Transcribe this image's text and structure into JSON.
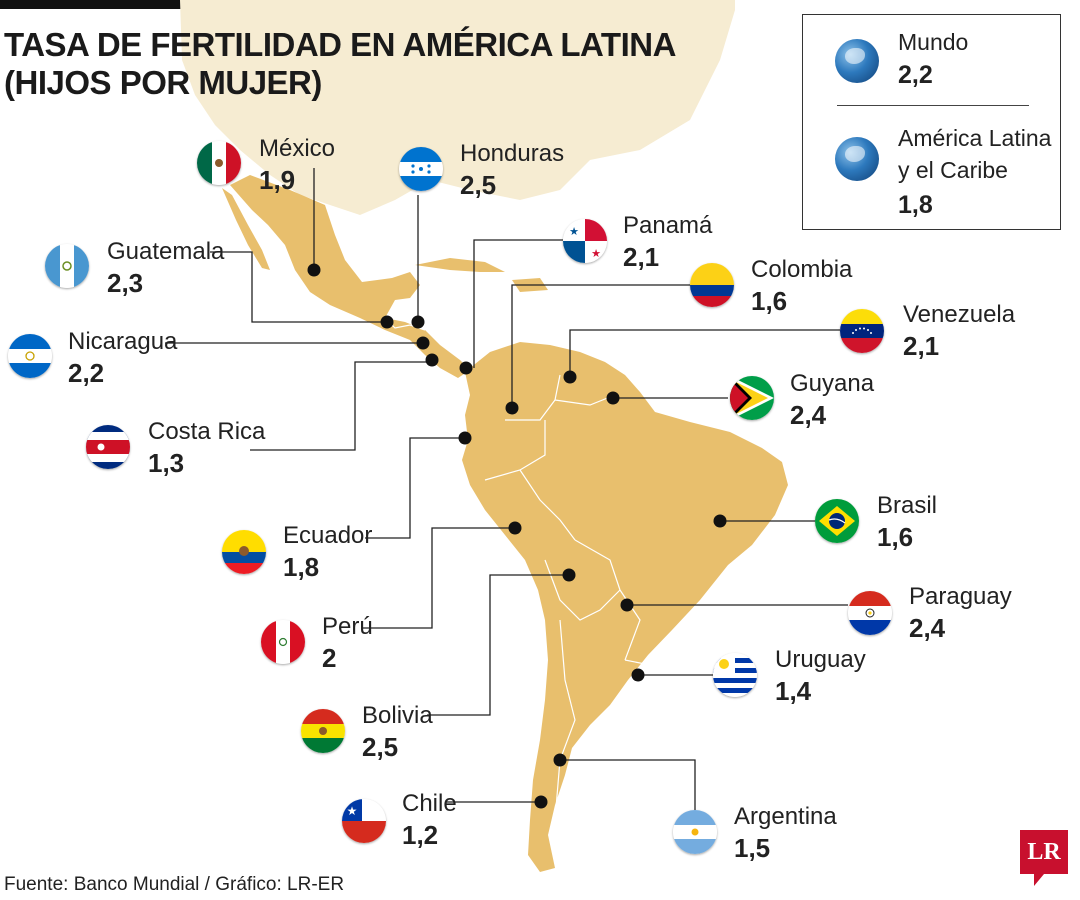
{
  "title_line1": "TASA DE FERTILIDAD EN AMÉRICA LATINA",
  "title_line2": "(HIJOS POR MUJER)",
  "legend": {
    "world_label": "Mundo",
    "world_value": "2,2",
    "region_label_line1": "América Latina",
    "region_label_line2": "y el Caribe",
    "region_value": "1,8"
  },
  "countries": {
    "mexico": {
      "name": "México",
      "value": "1,9"
    },
    "honduras": {
      "name": "Honduras",
      "value": "2,5"
    },
    "guatemala": {
      "name": "Guatemala",
      "value": "2,3"
    },
    "panama": {
      "name": "Panamá",
      "value": "2,1"
    },
    "colombia": {
      "name": "Colombia",
      "value": "1,6"
    },
    "nicaragua": {
      "name": "Nicaragua",
      "value": "2,2"
    },
    "venezuela": {
      "name": "Venezuela",
      "value": "2,1"
    },
    "guyana": {
      "name": "Guyana",
      "value": "2,4"
    },
    "costa_rica": {
      "name": "Costa Rica",
      "value": "1,3"
    },
    "ecuador": {
      "name": "Ecuador",
      "value": "1,8"
    },
    "brasil": {
      "name": "Brasil",
      "value": "1,6"
    },
    "paraguay": {
      "name": "Paraguay",
      "value": "2,4"
    },
    "peru": {
      "name": "Perú",
      "value": "2"
    },
    "uruguay": {
      "name": "Uruguay",
      "value": "1,4"
    },
    "bolivia": {
      "name": "Bolivia",
      "value": "2,5"
    },
    "chile": {
      "name": "Chile",
      "value": "1,2"
    },
    "argentina": {
      "name": "Argentina",
      "value": "1,5"
    }
  },
  "source": "Fuente: Banco Mundial / Gráfico: LR-ER",
  "logo": "LR",
  "colors": {
    "land": "#e8bf6d",
    "land_faded": "#f6ecd2",
    "border": "#ffffff",
    "dot": "#111111"
  }
}
